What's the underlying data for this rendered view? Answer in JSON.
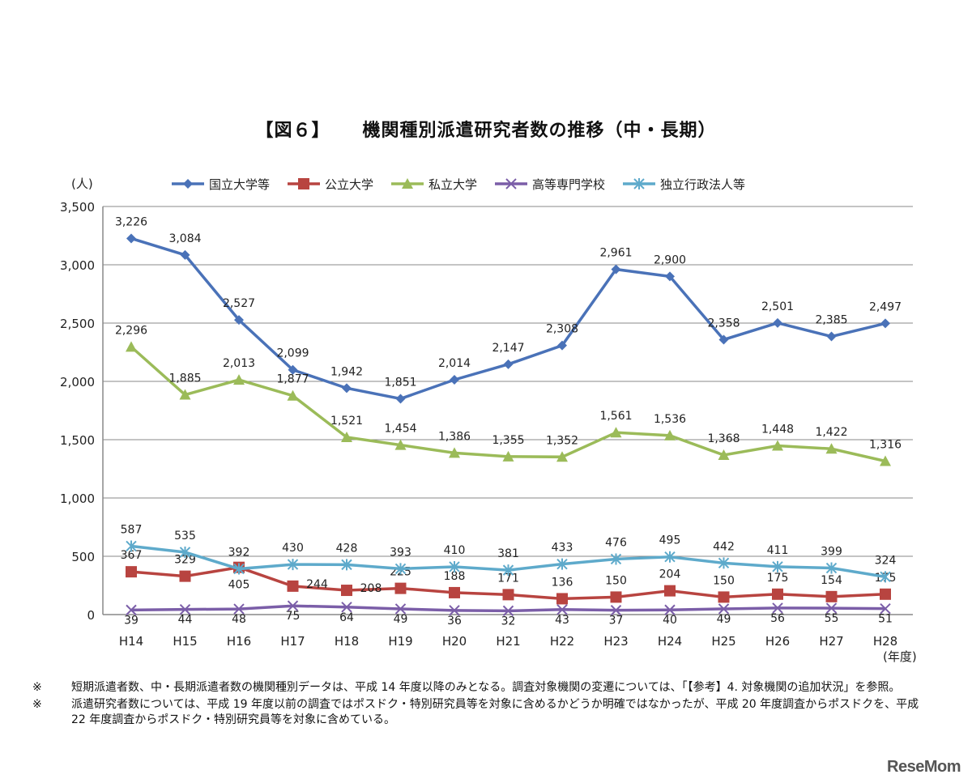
{
  "title": {
    "figure": "【図６】",
    "text": "機関種別派遣研究者数の推移（中・長期）"
  },
  "chart_data": {
    "type": "line",
    "title": "機関種別派遣研究者数の推移（中・長期）",
    "ylabel": "(人)",
    "xlabel": "(年度)",
    "ylim": [
      0,
      3500
    ],
    "yticks": [
      0,
      500,
      1000,
      1500,
      2000,
      2500,
      3000,
      3500
    ],
    "ytick_labels": [
      "0",
      "500",
      "1,000",
      "1,500",
      "2,000",
      "2,500",
      "3,000",
      "3,500"
    ],
    "grid": true,
    "legend_position": "top",
    "categories": [
      "H14",
      "H15",
      "H16",
      "H17",
      "H18",
      "H19",
      "H20",
      "H21",
      "H22",
      "H23",
      "H24",
      "H25",
      "H26",
      "H27",
      "H28"
    ],
    "series": [
      {
        "name": "国立大学等",
        "color": "#4a72b8",
        "marker": "diamond",
        "label_pos": "above",
        "values": [
          3226,
          3084,
          2527,
          2099,
          1942,
          1851,
          2014,
          2147,
          2308,
          2961,
          2900,
          2358,
          2501,
          2385,
          2497
        ]
      },
      {
        "name": "公立大学",
        "color": "#b84440",
        "marker": "square",
        "label_pos": "above",
        "values": [
          367,
          329,
          405,
          244,
          208,
          225,
          188,
          171,
          136,
          150,
          204,
          150,
          175,
          154,
          175
        ]
      },
      {
        "name": "私立大学",
        "color": "#9bbb59",
        "marker": "triangle",
        "label_pos": "above",
        "values": [
          2296,
          1885,
          2013,
          1877,
          1521,
          1454,
          1386,
          1355,
          1352,
          1561,
          1536,
          1368,
          1448,
          1422,
          1316
        ]
      },
      {
        "name": "高等専門学校",
        "color": "#7b5ea8",
        "marker": "x",
        "label_pos": "below",
        "values": [
          39,
          44,
          48,
          75,
          64,
          49,
          36,
          32,
          43,
          37,
          40,
          49,
          56,
          55,
          51
        ]
      },
      {
        "name": "独立行政法人等",
        "color": "#5eaacb",
        "marker": "asterisk",
        "label_pos": "above",
        "values": [
          587,
          535,
          392,
          430,
          428,
          393,
          410,
          381,
          433,
          476,
          495,
          442,
          411,
          399,
          324
        ]
      }
    ]
  },
  "notes": [
    {
      "mark": "※",
      "text": "短期派遣者数、中・長期派遣者数の機関種別データは、平成 14 年度以降のみとなる。調査対象機関の変遷については、「【参考】4. 対象機関の追加状況」を参照。"
    },
    {
      "mark": "※",
      "text": "派遣研究者数については、平成 19 年度以前の調査ではポスドク・特別研究員等を対象に含めるかどうか明確ではなかったが、平成 20 年度調査からポスドクを、平成 22 年度調査からポスドク・特別研究員等を対象に含めている。"
    }
  ],
  "watermark": "ReseMom"
}
